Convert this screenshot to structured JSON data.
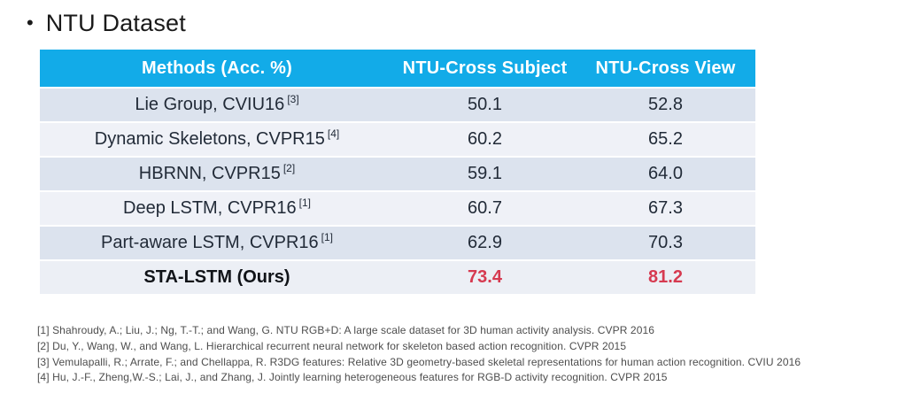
{
  "slide": {
    "title": "NTU Dataset",
    "bullet": "•"
  },
  "table": {
    "headers": [
      "Methods (Acc. %)",
      "NTU-Cross Subject",
      "NTU-Cross View"
    ],
    "rows": [
      {
        "method": "Lie Group, CVIU16",
        "ref": "[3]",
        "cross_subject": "50.1",
        "cross_view": "52.8",
        "highlight": false
      },
      {
        "method": "Dynamic Skeletons, CVPR15",
        "ref": "[4]",
        "cross_subject": "60.2",
        "cross_view": "65.2",
        "highlight": false
      },
      {
        "method": "HBRNN, CVPR15",
        "ref": "[2]",
        "cross_subject": "59.1",
        "cross_view": "64.0",
        "highlight": false
      },
      {
        "method": "Deep LSTM, CVPR16",
        "ref": "[1]",
        "cross_subject": "60.7",
        "cross_view": "67.3",
        "highlight": false
      },
      {
        "method": "Part-aware LSTM, CVPR16",
        "ref": "[1]",
        "cross_subject": "62.9",
        "cross_view": "70.3",
        "highlight": false
      },
      {
        "method": "STA-LSTM (Ours)",
        "ref": "",
        "cross_subject": "73.4",
        "cross_view": "81.2",
        "highlight": true
      }
    ]
  },
  "footnotes": [
    "[1] Shahroudy, A.; Liu, J.; Ng, T.-T.; and Wang, G. NTU RGB+D: A large scale dataset for 3D human activity analysis. CVPR 2016",
    "[2] Du, Y., Wang, W., and Wang, L. Hierarchical recurrent neural network for skeleton based action recognition. CVPR 2015",
    "[3] Vemulapalli, R.; Arrate, F.; and Chellappa, R. R3DG features: Relative 3D geometry-based skeletal representations for human action recognition. CVIU 2016",
    "[4] Hu, J.-F., Zheng,W.-S.; Lai, J., and Zhang, J. Jointly learning heterogeneous features for RGB-D activity recognition. CVPR 2015"
  ],
  "colors": {
    "slide_bg": "#ffffff",
    "header_bg": "#12abe8",
    "header_text": "#ffffff",
    "row_dark": "#dce3ee",
    "row_light": "#eff1f7",
    "row_highlight": "#eceff5",
    "table_text": "#222b38",
    "highlight_value": "#d63a50",
    "title_text": "#1a1a1a",
    "footnote_text": "#4d4d4d"
  }
}
